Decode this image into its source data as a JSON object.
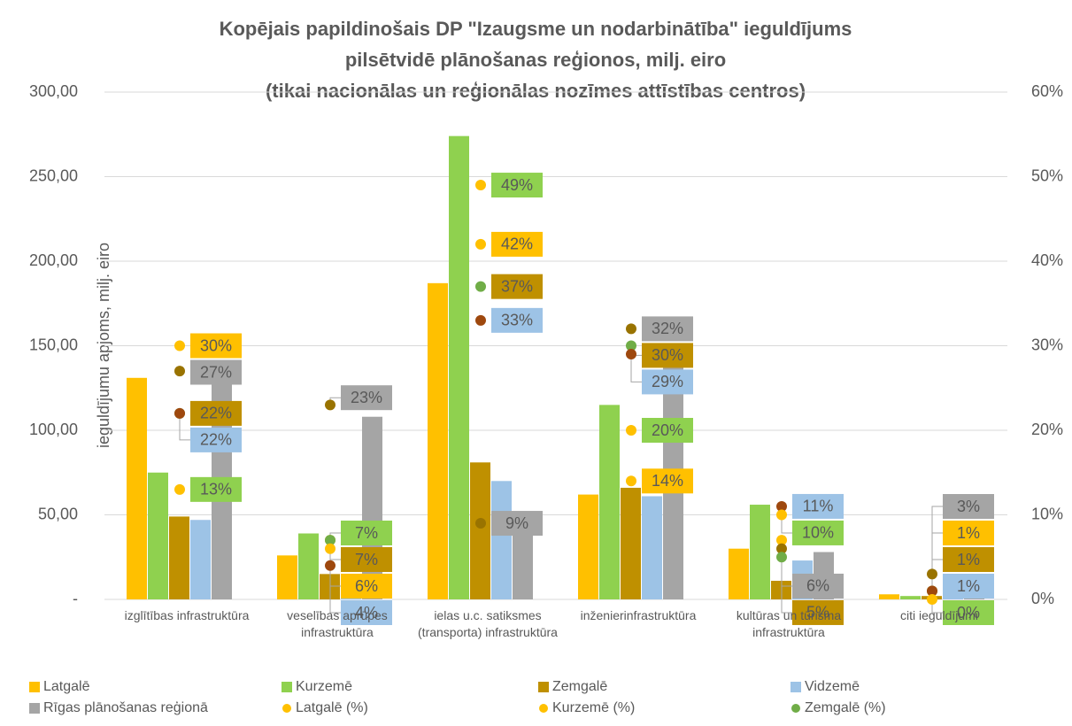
{
  "chart_data": {
    "type": "bar",
    "title": [
      "Kopējais papildinošais DP \"Izaugsme un nodarbinātība\" ieguldījums",
      "pilsētvidē plānošanas reģionos, milj. eiro",
      "(tikai nacionālas un reģionālas nozīmes attīstības centros)"
    ],
    "y_label": "ieguldījumu apjoms, milj. eiro",
    "categories": [
      "izglītības infrastruktūra",
      "veselības aprūpes infrastruktūra",
      "ielas u.c. satiksmes (transporta) infrastruktūra",
      "inženierinfrastruktūra",
      "kultūras un tūrisma infrastruktūra",
      "citi ieguldījumi"
    ],
    "ylim": [
      0,
      300
    ],
    "yticks": [
      {
        "value": 0,
        "label": "-"
      },
      {
        "value": 50,
        "label": "50,00"
      },
      {
        "value": 100,
        "label": "100,00"
      },
      {
        "value": 150,
        "label": "150,00"
      },
      {
        "value": 200,
        "label": "200,00"
      },
      {
        "value": 250,
        "label": "250,00"
      },
      {
        "value": 300,
        "label": "300,00"
      }
    ],
    "y2lim": [
      0,
      60
    ],
    "y2ticks": [
      {
        "value": 0,
        "label": "0%"
      },
      {
        "value": 10,
        "label": "10%"
      },
      {
        "value": 20,
        "label": "20%"
      },
      {
        "value": 30,
        "label": "30%"
      },
      {
        "value": 40,
        "label": "40%"
      },
      {
        "value": 50,
        "label": "50%"
      },
      {
        "value": 60,
        "label": "60%"
      }
    ],
    "grid": true,
    "legend": "bottom",
    "series": [
      {
        "name": "Latgalē",
        "color": "#ffc000",
        "values": [
          131,
          26,
          187,
          62,
          30,
          3
        ]
      },
      {
        "name": "Kurzemē",
        "color": "#8fd14f",
        "values": [
          75,
          39,
          274,
          115,
          56,
          2
        ]
      },
      {
        "name": "Zemgalē",
        "color": "#bf9000",
        "values": [
          49,
          15,
          81,
          66,
          11,
          2
        ]
      },
      {
        "name": "Vidzemē",
        "color": "#9dc3e6",
        "values": [
          47,
          9,
          70,
          61,
          23,
          2
        ]
      },
      {
        "name": "Rīgas plānošanas reģionā",
        "color": "#a5a5a5",
        "values": [
          127,
          108,
          42,
          150,
          28,
          14
        ]
      },
      {
        "name": "Latgalē (%)",
        "type": "scatter",
        "axis": "y2",
        "color": "#ffc000",
        "label_color": "#ffc000",
        "values": [
          30,
          6,
          42,
          14,
          7,
          1
        ],
        "value_labels": [
          "30%",
          "6%",
          "42%",
          "14%",
          null,
          "1%"
        ]
      },
      {
        "name": "Kurzemē (%)",
        "type": "scatter",
        "axis": "y2",
        "color": "#ffc000",
        "label_color": "#8fd14f",
        "values": [
          13,
          7,
          49,
          20,
          10,
          0
        ],
        "value_labels": [
          "13%",
          "7%",
          "49%",
          "20%",
          "10%",
          "0%"
        ]
      },
      {
        "name": "Zemgalē (%)",
        "type": "scatter",
        "axis": "y2",
        "color": "#70ad47",
        "label_color": "#bf9000",
        "values": [
          22,
          7,
          37,
          30,
          5,
          1
        ],
        "value_labels": [
          "22%",
          "7%",
          "37%",
          "30%",
          "5%",
          "1%"
        ]
      },
      {
        "type": "scatter",
        "axis": "y2",
        "color": "#9e480e",
        "label_color": "#9dc3e6",
        "values": [
          22,
          4,
          33,
          29,
          11,
          1
        ],
        "value_labels": [
          "22%",
          "4%",
          "33%",
          "29%",
          "11%",
          "1%"
        ]
      },
      {
        "type": "scatter",
        "axis": "y2",
        "color": "#997300",
        "label_color": "#a5a5a5",
        "values": [
          27,
          23,
          9,
          32,
          6,
          3
        ],
        "value_labels": [
          "27%",
          "23%",
          "9%",
          "32%",
          "6%",
          "3%"
        ]
      }
    ]
  }
}
